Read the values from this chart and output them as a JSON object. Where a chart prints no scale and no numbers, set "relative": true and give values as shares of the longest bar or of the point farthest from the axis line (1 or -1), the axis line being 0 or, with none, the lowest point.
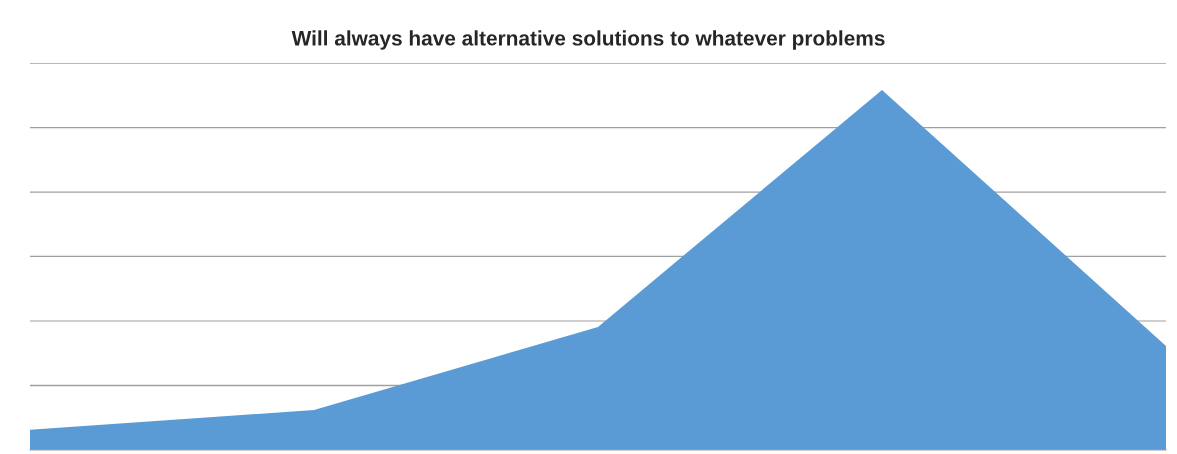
{
  "chart_data": {
    "type": "area",
    "title": "Will always have alternative solutions to whatever problems",
    "categories": [
      null,
      null,
      null,
      null,
      null
    ],
    "series": [
      {
        "color": "#5b9bd5",
        "values": [
          0.056,
          0.111,
          0.342,
          1,
          0.289
        ]
      }
    ],
    "relative": true,
    "grid": "y",
    "legend": false
  }
}
